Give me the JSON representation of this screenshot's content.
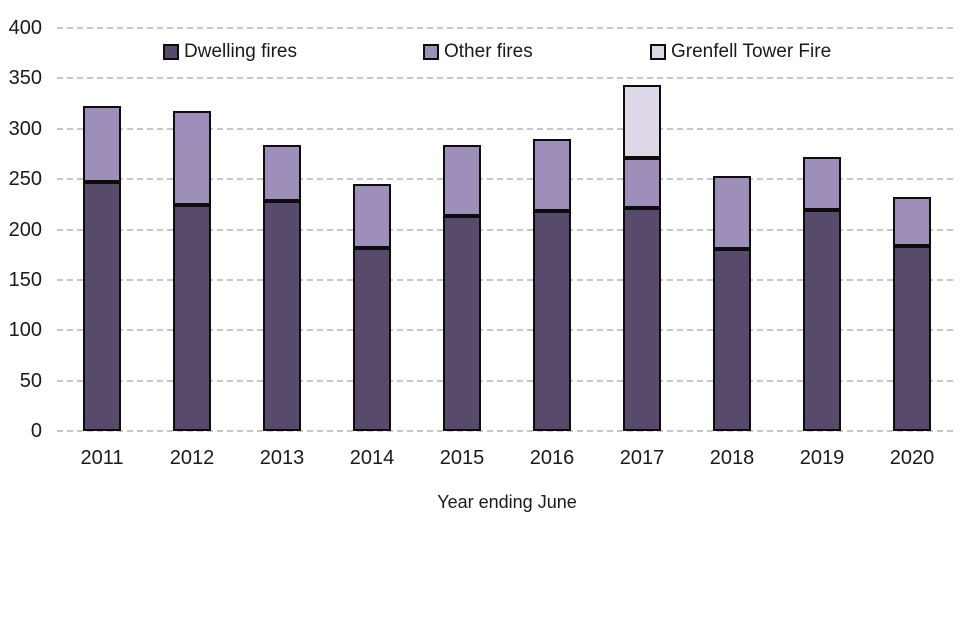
{
  "chart_data": {
    "type": "bar",
    "stacked": true,
    "title": "",
    "xlabel": "Year ending June",
    "ylabel": "",
    "ylim": [
      0,
      400
    ],
    "y_tick_step": 50,
    "y_ticks": [
      400,
      350,
      300,
      250,
      200,
      150,
      100,
      50,
      0
    ],
    "grid": "horizontal-dashed",
    "grid_color": "#c7c7c7",
    "outline_color": "#0d0d0d",
    "legend_position": "top",
    "categories": [
      "2011",
      "2012",
      "2013",
      "2014",
      "2015",
      "2016",
      "2017",
      "2018",
      "2019",
      "2020"
    ],
    "series": [
      {
        "name": "Dwelling fires",
        "color": "#574a6b",
        "values": [
          247,
          224,
          228,
          182,
          213,
          218,
          221,
          181,
          219,
          184
        ]
      },
      {
        "name": "Other fires",
        "color": "#9e8eba",
        "values": [
          76,
          94,
          56,
          63,
          71,
          72,
          50,
          72,
          53,
          48
        ]
      },
      {
        "name": "Grenfell Tower Fire",
        "color": "#ddd7e8",
        "values": [
          0,
          0,
          0,
          0,
          0,
          0,
          72,
          0,
          0,
          0
        ]
      }
    ],
    "totals": [
      323,
      318,
      284,
      245,
      284,
      290,
      343,
      253,
      272,
      232
    ]
  }
}
